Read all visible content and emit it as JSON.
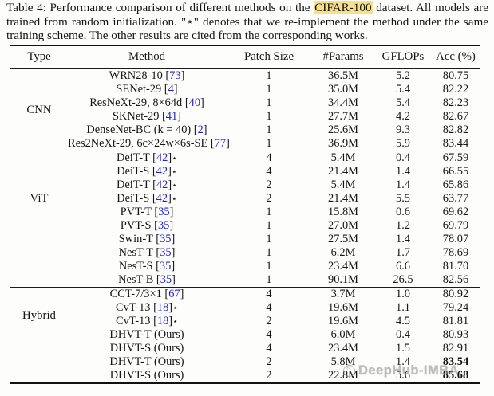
{
  "caption": {
    "prefix": "Table 4: Performance comparison of different methods on the ",
    "highlight": "CIFAR-100",
    "suffix": " dataset. All models are trained from random initialization. \"⋆\" denotes that we re-implement the method under the same training scheme. The other results are cited from the corresponding works."
  },
  "table": {
    "columns": [
      "Type",
      "Method",
      "Patch Size",
      "#Params",
      "GFLOPs",
      "Acc (%)"
    ],
    "sections": [
      {
        "type": "CNN",
        "rows": [
          {
            "method": "WRN28-10",
            "cite": "73",
            "star": false,
            "patch": "1",
            "params": "36.5M",
            "gflops": "5.2",
            "acc": "80.75",
            "bold": false
          },
          {
            "method": "SENet-29",
            "cite": "4",
            "star": false,
            "patch": "1",
            "params": "35.0M",
            "gflops": "5.4",
            "acc": "82.22",
            "bold": false
          },
          {
            "method": "ResNeXt-29, 8×64d",
            "cite": "40",
            "star": false,
            "patch": "1",
            "params": "34.4M",
            "gflops": "5.4",
            "acc": "82.23",
            "bold": false
          },
          {
            "method": "SKNet-29",
            "cite": "41",
            "star": false,
            "patch": "1",
            "params": "27.7M",
            "gflops": "4.2",
            "acc": "82.67",
            "bold": false
          },
          {
            "method": "DenseNet-BC (k = 40)",
            "cite": "2",
            "star": false,
            "patch": "1",
            "params": "25.6M",
            "gflops": "9.3",
            "acc": "82.82",
            "bold": false
          },
          {
            "method": "Res2NeXt-29, 6c×24w×6s-SE",
            "cite": "77",
            "star": false,
            "patch": "1",
            "params": "36.9M",
            "gflops": "5.9",
            "acc": "83.44",
            "bold": false
          }
        ]
      },
      {
        "type": "ViT",
        "rows": [
          {
            "method": "DeiT-T",
            "cite": "42",
            "star": true,
            "patch": "4",
            "params": "5.4M",
            "gflops": "0.4",
            "acc": "67.59",
            "bold": false
          },
          {
            "method": "DeiT-S",
            "cite": "42",
            "star": true,
            "patch": "4",
            "params": "21.4M",
            "gflops": "1.4",
            "acc": "66.55",
            "bold": false
          },
          {
            "method": "DeiT-T",
            "cite": "42",
            "star": true,
            "patch": "2",
            "params": "5.4M",
            "gflops": "1.4",
            "acc": "65.86",
            "bold": false
          },
          {
            "method": "DeiT-S",
            "cite": "42",
            "star": true,
            "patch": "2",
            "params": "21.4M",
            "gflops": "5.5",
            "acc": "63.77",
            "bold": false
          },
          {
            "method": "PVT-T",
            "cite": "35",
            "star": false,
            "patch": "1",
            "params": "15.8M",
            "gflops": "0.6",
            "acc": "69.62",
            "bold": false
          },
          {
            "method": "PVT-S",
            "cite": "35",
            "star": false,
            "patch": "1",
            "params": "27.0M",
            "gflops": "1.2",
            "acc": "69.79",
            "bold": false
          },
          {
            "method": "Swin-T",
            "cite": "35",
            "star": false,
            "patch": "1",
            "params": "27.5M",
            "gflops": "1.4",
            "acc": "78.07",
            "bold": false
          },
          {
            "method": "NesT-T",
            "cite": "35",
            "star": false,
            "patch": "1",
            "params": "6.2M",
            "gflops": "1.7",
            "acc": "78.69",
            "bold": false
          },
          {
            "method": "NesT-S",
            "cite": "35",
            "star": false,
            "patch": "1",
            "params": "23.4M",
            "gflops": "6.6",
            "acc": "81.70",
            "bold": false
          },
          {
            "method": "NesT-B",
            "cite": "35",
            "star": false,
            "patch": "1",
            "params": "90.1M",
            "gflops": "26.5",
            "acc": "82.56",
            "bold": false
          }
        ]
      },
      {
        "type": "Hybrid",
        "rows": [
          {
            "method": "CCT-7/3×1",
            "cite": "67",
            "star": false,
            "patch": "4",
            "params": "3.7M",
            "gflops": "1.0",
            "acc": "80.92",
            "bold": false
          },
          {
            "method": "CvT-13",
            "cite": "18",
            "star": true,
            "patch": "4",
            "params": "19.6M",
            "gflops": "1.1",
            "acc": "79.24",
            "bold": false
          },
          {
            "method": "CvT-13",
            "cite": "18",
            "star": true,
            "patch": "2",
            "params": "19.6M",
            "gflops": "4.5",
            "acc": "81.81",
            "bold": false
          },
          {
            "method": "DHVT-T (Ours)",
            "cite": null,
            "star": false,
            "patch": "4",
            "params": "6.0M",
            "gflops": "0.4",
            "acc": "80.93",
            "bold": false
          },
          {
            "method": "DHVT-S (Ours)",
            "cite": null,
            "star": false,
            "patch": "4",
            "params": "23.4M",
            "gflops": "1.5",
            "acc": "82.91",
            "bold": false
          },
          {
            "method": "DHVT-T (Ours)",
            "cite": null,
            "star": false,
            "patch": "2",
            "params": "5.8M",
            "gflops": "1.4",
            "acc": "83.54",
            "bold": true
          },
          {
            "method": "DHVT-S (Ours)",
            "cite": null,
            "star": false,
            "patch": "2",
            "params": "22.8M",
            "gflops": "5.6",
            "acc": "85.68",
            "bold": true
          }
        ]
      }
    ]
  },
  "watermark": {
    "text": "DeepHub-IMBA"
  },
  "colors": {
    "citation": "#2424cf",
    "highlight": "#f8e08b",
    "watermark": "#969696"
  }
}
